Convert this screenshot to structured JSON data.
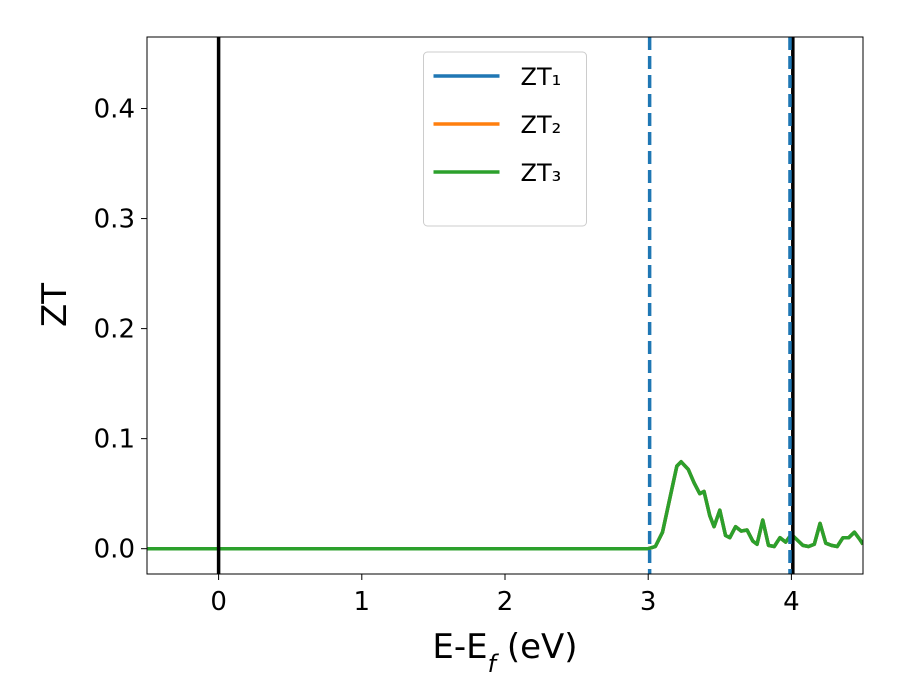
{
  "chart_data": {
    "type": "line",
    "xlabel": "E-E_f (eV)",
    "ylabel": "ZT",
    "x": [
      -0.5,
      0,
      1,
      2,
      2.9,
      3.0,
      3.05,
      3.1,
      3.15,
      3.2,
      3.23,
      3.28,
      3.32,
      3.36,
      3.39,
      3.43,
      3.46,
      3.5,
      3.54,
      3.57,
      3.61,
      3.65,
      3.69,
      3.73,
      3.76,
      3.8,
      3.84,
      3.88,
      3.92,
      3.96,
      4.0,
      4.04,
      4.08,
      4.12,
      4.16,
      4.2,
      4.24,
      4.28,
      4.32,
      4.36,
      4.4,
      4.44,
      4.48,
      4.5
    ],
    "series": [
      {
        "name": "ZT₁",
        "color": "#1f77b4",
        "values": [
          0,
          0,
          0,
          0,
          0,
          0,
          0.002,
          0.015,
          0.045,
          0.075,
          0.079,
          0.072,
          0.06,
          0.05,
          0.052,
          0.03,
          0.02,
          0.035,
          0.012,
          0.01,
          0.02,
          0.016,
          0.017,
          0.007,
          0.004,
          0.026,
          0.003,
          0.002,
          0.01,
          0.006,
          0.013,
          0.008,
          0.003,
          0.002,
          0.004,
          0.023,
          0.005,
          0.003,
          0.002,
          0.01,
          0.01,
          0.015,
          0.008,
          0.004
        ]
      },
      {
        "name": "ZT₂",
        "color": "#ff7f0e",
        "values": [
          0,
          0,
          0,
          0,
          0,
          0,
          0.002,
          0.015,
          0.045,
          0.075,
          0.079,
          0.072,
          0.06,
          0.05,
          0.052,
          0.03,
          0.02,
          0.035,
          0.012,
          0.01,
          0.02,
          0.016,
          0.017,
          0.007,
          0.004,
          0.026,
          0.003,
          0.002,
          0.01,
          0.006,
          0.013,
          0.008,
          0.003,
          0.002,
          0.004,
          0.023,
          0.005,
          0.003,
          0.002,
          0.01,
          0.01,
          0.015,
          0.008,
          0.004
        ]
      },
      {
        "name": "ZT₃",
        "color": "#2ca02c",
        "values": [
          0,
          0,
          0,
          0,
          0,
          0,
          0.002,
          0.015,
          0.045,
          0.075,
          0.079,
          0.072,
          0.06,
          0.05,
          0.052,
          0.03,
          0.02,
          0.035,
          0.012,
          0.01,
          0.02,
          0.016,
          0.017,
          0.007,
          0.004,
          0.026,
          0.003,
          0.002,
          0.01,
          0.006,
          0.013,
          0.008,
          0.003,
          0.002,
          0.004,
          0.023,
          0.005,
          0.003,
          0.002,
          0.01,
          0.01,
          0.015,
          0.008,
          0.004
        ]
      }
    ],
    "vlines": [
      {
        "x": 0,
        "color": "#000000",
        "style": "solid"
      },
      {
        "x": 4.01,
        "color": "#000000",
        "style": "solid"
      },
      {
        "x": 3.01,
        "color": "#1f77b4",
        "style": "dashed"
      },
      {
        "x": 3.99,
        "color": "#1f77b4",
        "style": "dashed"
      }
    ],
    "xlim": [
      -0.5,
      4.5
    ],
    "xticks": [
      0,
      1,
      2,
      3,
      4
    ],
    "ylim": [
      -0.023,
      0.465
    ],
    "yticks": [
      {
        "value": 0,
        "label": "0.0"
      },
      0.1,
      0.2,
      0.3,
      0.4
    ],
    "grid": false,
    "legend": "upper center"
  }
}
